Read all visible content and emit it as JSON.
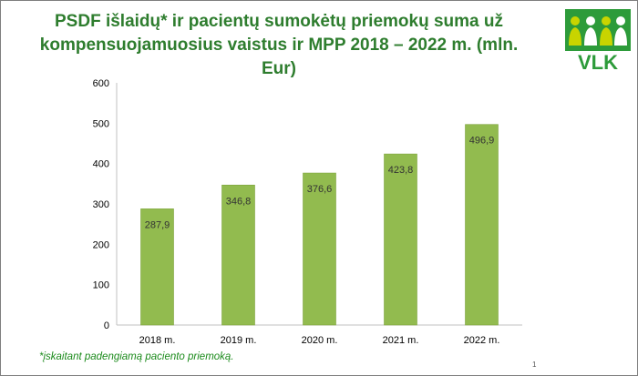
{
  "title_line1": "PSDF išlaidų* ir pacientų sumokėtų priemokų suma už",
  "title_line2": "kompensuojamuosius vaistus ir MPP 2018 – 2022 m. (mln. Eur)",
  "logo": {
    "text": "VLK",
    "icon": "vlk-people-logo-icon",
    "green": "#2d9b3a",
    "yellow": "#c8d400"
  },
  "footnote": "*įskaitant padengiamą paciento priemoką.",
  "page_number": "1",
  "colors": {
    "bar": "#92bb4f",
    "bar_edge": "#7da43c",
    "title": "#2e7d2e",
    "footnote": "#1a8a1a"
  },
  "chart_data": {
    "type": "bar",
    "title": "PSDF išlaidų* ir pacientų sumokėtų priemokų suma už kompensuojamuosius vaistus ir MPP 2018 – 2022 m. (mln. Eur)",
    "categories": [
      "2018 m.",
      "2019 m.",
      "2020 m.",
      "2021 m.",
      "2022 m."
    ],
    "values": [
      287.9,
      346.8,
      376.6,
      423.8,
      496.9
    ],
    "value_labels": [
      "287,9",
      "346,8",
      "376,6",
      "423,8",
      "496,9"
    ],
    "xlabel": "",
    "ylabel": "",
    "ylim": [
      0,
      600
    ],
    "yticks": [
      0,
      100,
      200,
      300,
      400,
      500,
      600
    ],
    "grid": false,
    "legend": "none"
  }
}
